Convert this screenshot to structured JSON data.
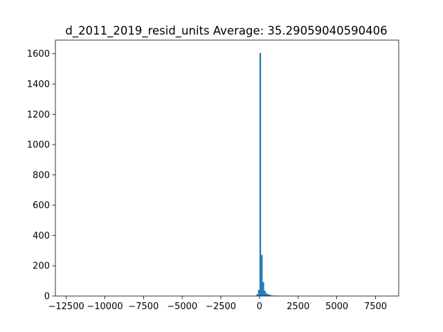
{
  "chart_data": {
    "type": "bar",
    "title": "d_2011_2019_resid_units  Average: 35.29059040590406",
    "xlabel": "",
    "ylabel": "",
    "xlim": [
      -13200,
      9000
    ],
    "ylim": [
      0,
      1690
    ],
    "bar_color": "#1f77b4",
    "bin_width": 100,
    "x_ticks": [
      -12500,
      -10000,
      -7500,
      -5000,
      -2500,
      0,
      2500,
      5000,
      7500
    ],
    "y_ticks": [
      0,
      200,
      400,
      600,
      800,
      1000,
      1200,
      1400,
      1600
    ],
    "bins": [
      {
        "x0": -200,
        "x1": -100,
        "count": 12
      },
      {
        "x0": -100,
        "x1": 0,
        "count": 40
      },
      {
        "x0": 0,
        "x1": 100,
        "count": 1605
      },
      {
        "x0": 100,
        "x1": 200,
        "count": 272
      },
      {
        "x0": 200,
        "x1": 300,
        "count": 92
      },
      {
        "x0": 300,
        "x1": 400,
        "count": 35
      },
      {
        "x0": 400,
        "x1": 500,
        "count": 18
      },
      {
        "x0": 500,
        "x1": 600,
        "count": 12
      },
      {
        "x0": 600,
        "x1": 700,
        "count": 8
      },
      {
        "x0": 700,
        "x1": 800,
        "count": 5
      },
      {
        "x0": 800,
        "x1": 900,
        "count": 3
      },
      {
        "x0": 900,
        "x1": 1000,
        "count": 3
      },
      {
        "x0": 1000,
        "x1": 1100,
        "count": 2
      },
      {
        "x0": 1100,
        "x1": 1200,
        "count": 2
      },
      {
        "x0": 1200,
        "x1": 1300,
        "count": 2
      }
    ]
  }
}
